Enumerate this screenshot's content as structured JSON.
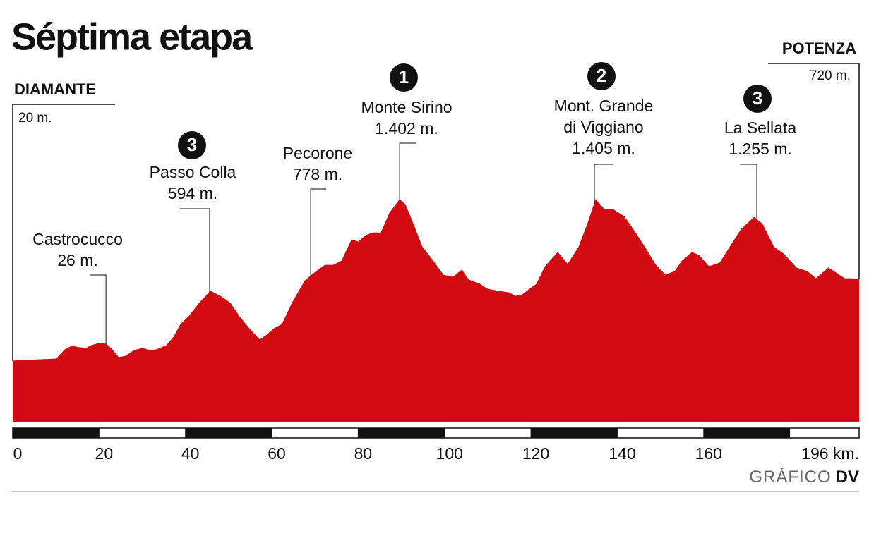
{
  "chart_data": {
    "type": "area",
    "title": "Séptima etapa",
    "color": "#d20a11",
    "xlim": [
      0,
      196
    ],
    "ylim": [
      -500,
      1500
    ],
    "xticks": [
      0,
      20,
      40,
      60,
      80,
      100,
      120,
      140,
      160,
      {
        "value": 196,
        "label": "196 km."
      }
    ],
    "x": [
      0,
      10.1,
      12.1,
      13.7,
      15.4,
      17,
      18.3,
      20,
      21.6,
      22.9,
      24.5,
      26.2,
      28.1,
      30.1,
      31.7,
      33.3,
      35.6,
      37.3,
      38.9,
      40.9,
      43.2,
      45.8,
      48.1,
      50.4,
      52.6,
      55.3,
      57.2,
      58.9,
      60.5,
      62.4,
      64.7,
      67.7,
      70.3,
      72.3,
      74.2,
      76.2,
      78.5,
      80.1,
      81.7,
      83.4,
      85.3,
      87.3,
      89.6,
      90.9,
      92.9,
      94.8,
      97.1,
      99.7,
      102,
      104,
      105.6,
      108.2,
      109.9,
      112.5,
      114.8,
      116.4,
      118,
      119.7,
      121.3,
      123.3,
      126.2,
      128.5,
      131.1,
      133.1,
      135,
      137,
      139,
      141.6,
      144.2,
      146.5,
      148.8,
      151.1,
      153.3,
      155,
      157.3,
      158.9,
      161.2,
      163.7,
      166.1,
      168.7,
      171.7,
      173.6,
      176.2,
      178.5,
      181.5,
      184,
      186,
      188.9,
      192.6,
      194.2,
      196
    ],
    "values": [
      20,
      38,
      117,
      147,
      135,
      129,
      153,
      171,
      165,
      123,
      50,
      62,
      110,
      129,
      110,
      117,
      153,
      225,
      334,
      406,
      515,
      618,
      575,
      515,
      394,
      274,
      201,
      244,
      298,
      334,
      515,
      708,
      787,
      841,
      841,
      877,
      1058,
      1040,
      1094,
      1118,
      1118,
      1287,
      1402,
      1360,
      1179,
      998,
      889,
      756,
      738,
      799,
      714,
      678,
      636,
      618,
      606,
      575,
      587,
      636,
      678,
      829,
      950,
      847,
      998,
      1191,
      1402,
      1318,
      1318,
      1257,
      1118,
      985,
      847,
      756,
      787,
      877,
      950,
      926,
      829,
      859,
      998,
      1148,
      1251,
      1191,
      998,
      938,
      817,
      787,
      726,
      817,
      726,
      726,
      720
    ],
    "start": {
      "name": "DIAMANTE",
      "label": "20 m."
    },
    "finish": {
      "name": "POTENZA",
      "label": "720 m."
    },
    "annotations": [
      {
        "name": [
          "Castrocucco"
        ],
        "label": "26 m.",
        "x": 21.6
      },
      {
        "name": [
          "Passo Colla"
        ],
        "label": "594 m.",
        "x": 45.6,
        "category": "3"
      },
      {
        "name": [
          "Pecorone"
        ],
        "label": "778 m.",
        "x": 69.0
      },
      {
        "name": [
          "Monte Sirino"
        ],
        "label": "1.402 m.",
        "x": 89.6,
        "category": "1"
      },
      {
        "name": [
          "Mont. Grande",
          "di Viggiano"
        ],
        "label": "1.405 m.",
        "x": 134.7,
        "category": "2"
      },
      {
        "name": [
          "La Sellata"
        ],
        "label": "1.255 m.",
        "x": 172.3,
        "category": "3"
      }
    ],
    "credit": {
      "text": "GRÁFICO",
      "brand": "DV"
    }
  }
}
